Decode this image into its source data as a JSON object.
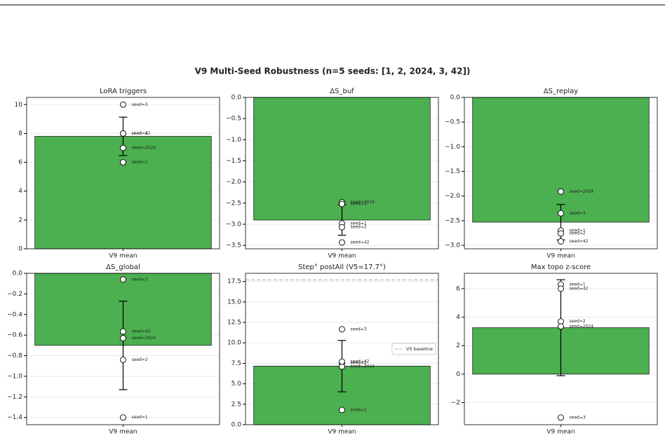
{
  "title": "V9 Multi-Seed Robustness  (n=5 seeds: [1, 2, 2024, 3, 42])",
  "chart_data": [
    {
      "type": "bar",
      "title": "LoRA triggers",
      "categories": [
        "V9 mean"
      ],
      "values": [
        7.8
      ],
      "errors": [
        1.33
      ],
      "color": "#4caf50",
      "points": {
        "labels": [
          "seed=1",
          "seed=2",
          "seed=2024",
          "seed=3",
          "seed=42"
        ],
        "values": [
          6,
          8,
          7,
          10,
          8
        ]
      },
      "ylim": [
        0,
        10.5
      ],
      "yticks": [
        0,
        2,
        4,
        6,
        8,
        10
      ],
      "grid": true
    },
    {
      "type": "bar",
      "title": "ΔS_buf",
      "categories": [
        "V9 mean"
      ],
      "values": [
        -2.9
      ],
      "errors": [
        0.36
      ],
      "color": "#4caf50",
      "points": {
        "labels": [
          "seed=1",
          "seed=2",
          "seed=2024",
          "seed=3",
          "seed=42"
        ],
        "values": [
          -2.98,
          -3.07,
          -2.48,
          -2.52,
          -3.43
        ]
      },
      "ylim": [
        -3.58,
        0
      ],
      "yticks": [
        {
          "value": 0,
          "label": "0.0"
        },
        {
          "value": -0.5,
          "label": "−0.5"
        },
        {
          "value": -1,
          "label": "−1.0"
        },
        {
          "value": -1.5,
          "label": "−1.5"
        },
        {
          "value": -2,
          "label": "−2.0"
        },
        {
          "value": -2.5,
          "label": "−2.5"
        },
        {
          "value": -3,
          "label": "−3.0"
        },
        {
          "value": -3.5,
          "label": "−3.5"
        }
      ],
      "grid": true
    },
    {
      "type": "bar",
      "title": "ΔS_replay",
      "categories": [
        "V9 mean"
      ],
      "values": [
        -2.53
      ],
      "errors": [
        0.36
      ],
      "color": "#4caf50",
      "points": {
        "labels": [
          "seed=1",
          "seed=2",
          "seed=2024",
          "seed=3",
          "seed=42"
        ],
        "values": [
          -2.7,
          -2.76,
          -1.91,
          -2.35,
          -2.92
        ]
      },
      "ylim": [
        -3.07,
        0
      ],
      "yticks": [
        {
          "value": 0,
          "label": "0.0"
        },
        {
          "value": -0.5,
          "label": "−0.5"
        },
        {
          "value": -1,
          "label": "−1.0"
        },
        {
          "value": -1.5,
          "label": "−1.5"
        },
        {
          "value": -2,
          "label": "−2.0"
        },
        {
          "value": -2.5,
          "label": "−2.5"
        },
        {
          "value": -3,
          "label": "−3.0"
        }
      ],
      "grid": true
    },
    {
      "type": "bar",
      "title": "ΔS_global",
      "categories": [
        "V9 mean"
      ],
      "values": [
        -0.7
      ],
      "errors": [
        0.43
      ],
      "color": "#4caf50",
      "points": {
        "labels": [
          "seed=1",
          "seed=2",
          "seed=2024",
          "seed=3",
          "seed=42"
        ],
        "values": [
          -1.4,
          -0.84,
          -0.63,
          -0.06,
          -0.565
        ]
      },
      "ylim": [
        -1.47,
        0
      ],
      "yticks": [
        {
          "value": 0,
          "label": "0.0"
        },
        {
          "value": -0.2,
          "label": "−0.2"
        },
        {
          "value": -0.4,
          "label": "−0.4"
        },
        {
          "value": -0.6,
          "label": "−0.6"
        },
        {
          "value": -0.8,
          "label": "−0.8"
        },
        {
          "value": -1,
          "label": "−1.0"
        },
        {
          "value": -1.2,
          "label": "−1.2"
        },
        {
          "value": -1.4,
          "label": "−1.4"
        }
      ],
      "grid": true
    },
    {
      "type": "bar",
      "title": "Step° postAll  (V5=17.7°)",
      "categories": [
        "V9 mean"
      ],
      "values": [
        7.16
      ],
      "errors": [
        3.14
      ],
      "color": "#4caf50",
      "points": {
        "labels": [
          "seed=1",
          "seed=2",
          "seed=2024",
          "seed=3",
          "seed=42"
        ],
        "values": [
          1.8,
          7.55,
          7.1,
          11.66,
          7.7
        ]
      },
      "baseline": {
        "value": 17.7,
        "name": "V5 baseline",
        "color": "#aaaaaa"
      },
      "legend": "center right",
      "ylim": [
        0,
        18.5
      ],
      "yticks": [
        {
          "value": 0,
          "label": "0.0"
        },
        2.5,
        {
          "value": 5,
          "label": "5.0"
        },
        7.5,
        {
          "value": 10,
          "label": "10.0"
        },
        12.5,
        {
          "value": 15,
          "label": "15.0"
        },
        17.5
      ],
      "grid": true
    },
    {
      "type": "bar",
      "title": "Max topo z-score",
      "categories": [
        "V9 mean"
      ],
      "values": [
        3.26
      ],
      "errors": [
        3.37
      ],
      "color": "#4caf50",
      "points": {
        "labels": [
          "seed=1",
          "seed=2",
          "seed=2024",
          "seed=3",
          "seed=42"
        ],
        "values": [
          6.3,
          3.7,
          3.35,
          -3.05,
          6.0
        ]
      },
      "ylim": [
        -3.55,
        7.08
      ],
      "yticks": [
        {
          "value": -2,
          "label": "−2"
        },
        0,
        2,
        4,
        6
      ],
      "grid": true
    }
  ]
}
